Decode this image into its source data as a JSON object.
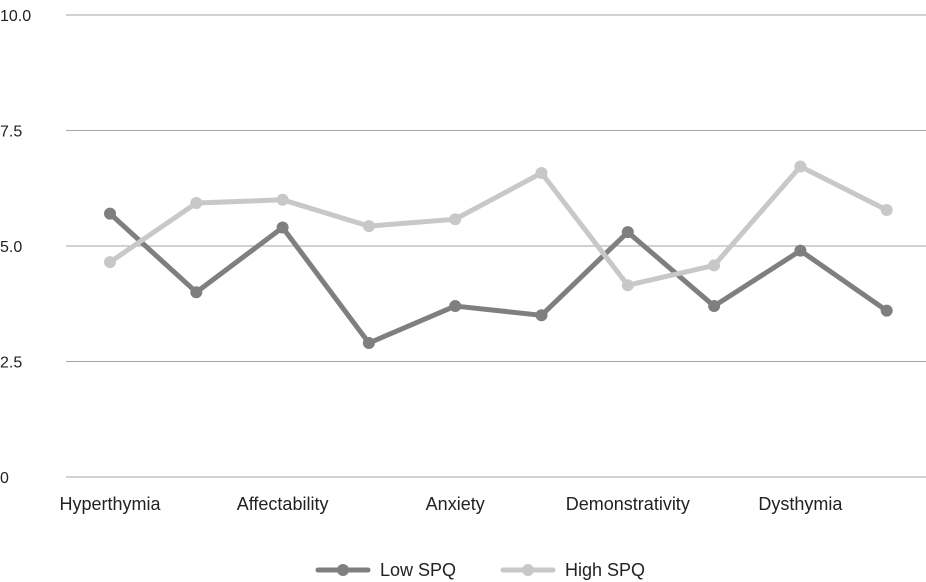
{
  "chart_data": {
    "type": "line",
    "ylim": [
      0,
      10
    ],
    "y_ticks": [
      {
        "value": 0,
        "label": "0"
      },
      {
        "value": 2.5,
        "label": "2.5"
      },
      {
        "value": 5,
        "label": "5.0"
      },
      {
        "value": 7.5,
        "label": "7.5"
      },
      {
        "value": 10,
        "label": "10.0"
      }
    ],
    "categories": [
      "Hyperthymia",
      "",
      "Affectability",
      "",
      "Anxiety",
      "",
      "Demonstrativity",
      "",
      "Dysthymia",
      ""
    ],
    "series": [
      {
        "name": "Low SPQ",
        "color": "#7f7f7f",
        "values": [
          5.7,
          4.0,
          5.4,
          2.9,
          3.7,
          3.5,
          5.3,
          3.7,
          4.9,
          3.6
        ]
      },
      {
        "name": "High SPQ",
        "color": "#c8c8c8",
        "values": [
          4.65,
          5.93,
          6.0,
          5.43,
          5.58,
          6.58,
          4.15,
          4.58,
          6.72,
          5.78
        ]
      }
    ],
    "grid": true,
    "legend_position": "bottom"
  }
}
